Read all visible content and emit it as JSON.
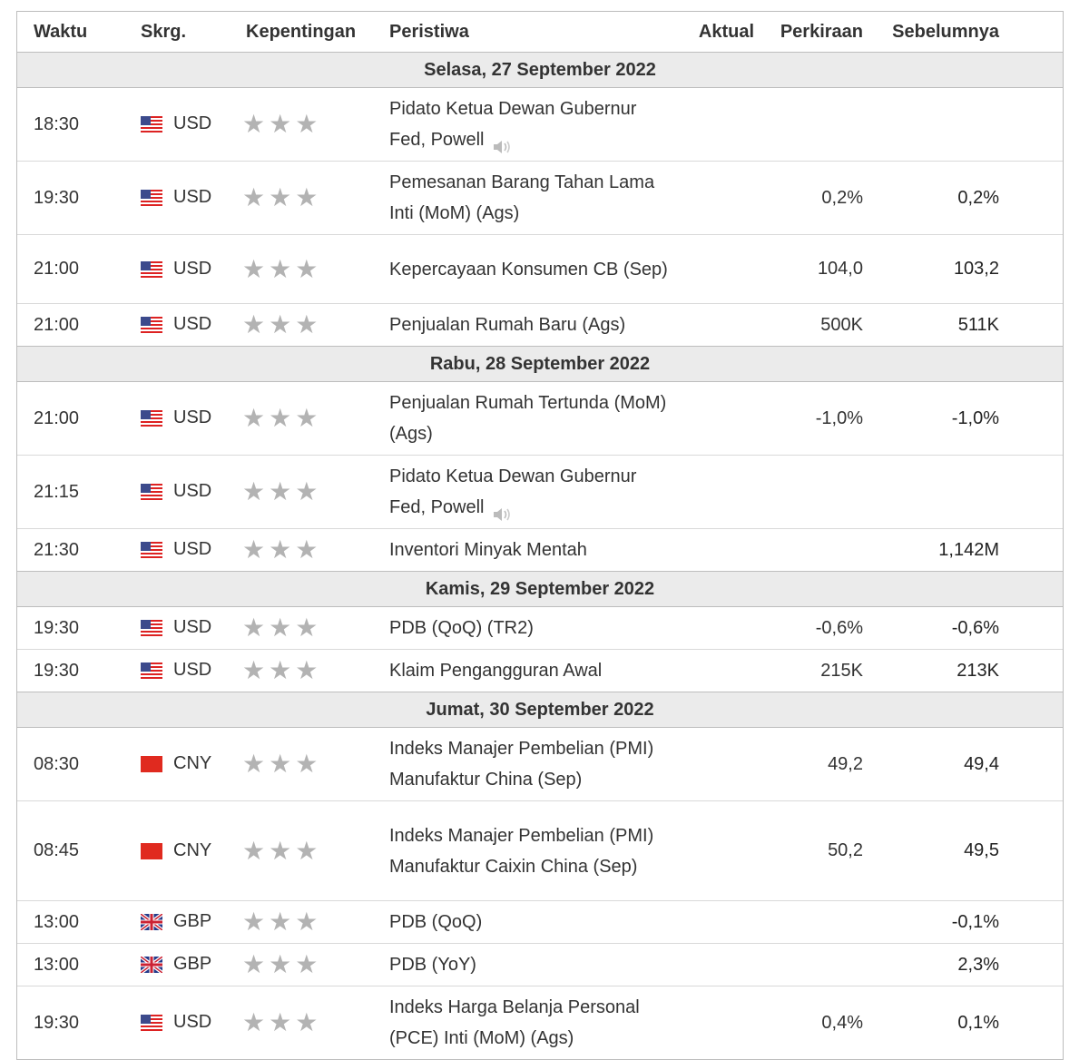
{
  "headers": {
    "time": "Waktu",
    "currency": "Skrg.",
    "importance": "Kepentingan",
    "event": "Peristiwa",
    "actual": "Aktual",
    "forecast": "Perkiraan",
    "previous": "Sebelumnya"
  },
  "groups": [
    {
      "date": "Selasa, 27 September 2022",
      "rows": [
        {
          "time": "18:30",
          "flag": "us",
          "currency": "USD",
          "event": "Pidato Ketua Dewan Gubernur Fed, Powell",
          "sound": true,
          "actual": "",
          "forecast": "",
          "previous": "",
          "h": 78
        },
        {
          "time": "19:30",
          "flag": "us",
          "currency": "USD",
          "event": "Pemesanan Barang Tahan Lama Inti (MoM) (Ags)",
          "sound": false,
          "actual": "",
          "forecast": "0,2%",
          "previous": "0,2%",
          "h": 74
        },
        {
          "time": "21:00",
          "flag": "us",
          "currency": "USD",
          "event": "Kepercayaan Konsumen CB (Sep)",
          "sound": false,
          "actual": "",
          "forecast": "104,0",
          "previous": "103,2",
          "h": 76
        },
        {
          "time": "21:00",
          "flag": "us",
          "currency": "USD",
          "event": "Penjualan Rumah Baru (Ags)",
          "sound": false,
          "actual": "",
          "forecast": "500K",
          "previous": "511K",
          "h": 46
        }
      ]
    },
    {
      "date": "Rabu, 28 September 2022",
      "rows": [
        {
          "time": "21:00",
          "flag": "us",
          "currency": "USD",
          "event": "Penjualan Rumah Tertunda (MoM) (Ags)",
          "sound": false,
          "actual": "",
          "forecast": "-1,0%",
          "previous": "-1,0%",
          "h": 74
        },
        {
          "time": "21:15",
          "flag": "us",
          "currency": "USD",
          "event": "Pidato Ketua Dewan Gubernur Fed, Powell",
          "sound": true,
          "actual": "",
          "forecast": "",
          "previous": "",
          "h": 76
        },
        {
          "time": "21:30",
          "flag": "us",
          "currency": "USD",
          "event": "Inventori Minyak Mentah",
          "sound": false,
          "actual": "",
          "forecast": "",
          "previous": "1,142M",
          "h": 46
        }
      ]
    },
    {
      "date": "Kamis, 29 September 2022",
      "rows": [
        {
          "time": "19:30",
          "flag": "us",
          "currency": "USD",
          "event": "PDB (QoQ) (TR2)",
          "sound": false,
          "actual": "",
          "forecast": "-0,6%",
          "previous": "-0,6%",
          "h": 46
        },
        {
          "time": "19:30",
          "flag": "us",
          "currency": "USD",
          "event": "Klaim Pengangguran Awal",
          "sound": false,
          "actual": "",
          "forecast": "215K",
          "previous": "213K",
          "h": 46
        }
      ]
    },
    {
      "date": "Jumat, 30 September 2022",
      "rows": [
        {
          "time": "08:30",
          "flag": "cn",
          "currency": "CNY",
          "event": "Indeks Manajer Pembelian (PMI) Manufaktur China (Sep)",
          "sound": false,
          "actual": "",
          "forecast": "49,2",
          "previous": "49,4",
          "h": 76
        },
        {
          "time": "08:45",
          "flag": "cn",
          "currency": "CNY",
          "event": "Indeks Manajer Pembelian (PMI) Manufaktur Caixin China (Sep)",
          "sound": false,
          "actual": "",
          "forecast": "50,2",
          "previous": "49,5",
          "h": 110
        },
        {
          "time": "13:00",
          "flag": "gb",
          "currency": "GBP",
          "event": "PDB (QoQ)",
          "sound": false,
          "actual": "",
          "forecast": "",
          "previous": "-0,1%",
          "h": 46
        },
        {
          "time": "13:00",
          "flag": "gb",
          "currency": "GBP",
          "event": "PDB (YoY)",
          "sound": false,
          "actual": "",
          "forecast": "",
          "previous": "2,3%",
          "h": 46
        },
        {
          "time": "19:30",
          "flag": "us",
          "currency": "USD",
          "event": "Indeks Harga Belanja Personal (PCE) Inti (MoM) (Ags)",
          "sound": false,
          "actual": "",
          "forecast": "0,4%",
          "previous": "0,1%",
          "h": 76
        }
      ]
    }
  ],
  "importance_stars": 3,
  "colors": {
    "star": "#b3b3b3",
    "day_bg": "#ebebeb",
    "border": "#bdbdbd"
  }
}
